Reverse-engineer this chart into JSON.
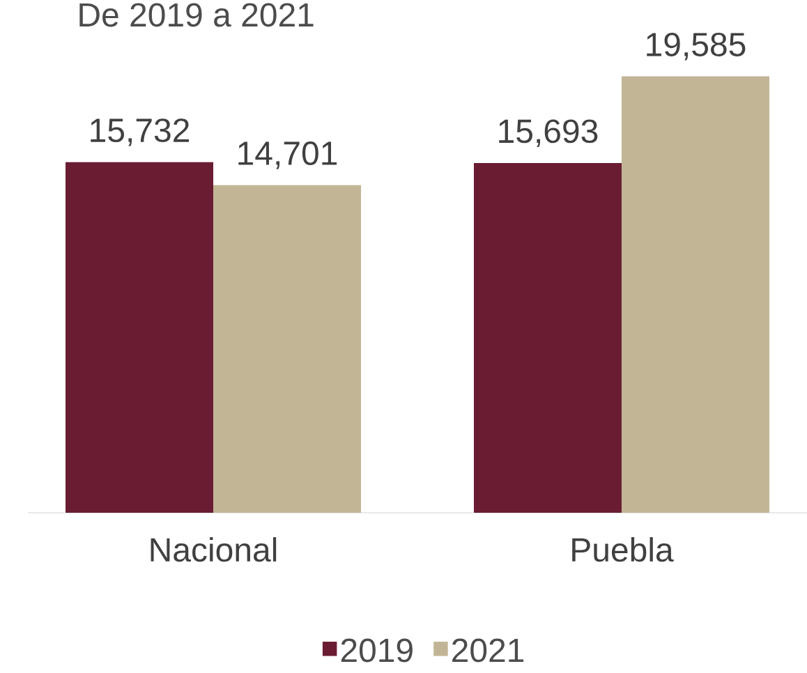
{
  "chart_data": {
    "type": "bar",
    "title": "De 2019 a 2021",
    "categories": [
      "Nacional",
      "Puebla"
    ],
    "series": [
      {
        "name": "2019",
        "color": "#6a1c32",
        "values": [
          15732,
          15693
        ],
        "value_labels": [
          "15,732",
          "15,693"
        ]
      },
      {
        "name": "2021",
        "color": "#c2b596",
        "values": [
          14701,
          19585
        ],
        "value_labels": [
          "14,701",
          "19,585"
        ]
      }
    ],
    "legend": "bottom"
  }
}
